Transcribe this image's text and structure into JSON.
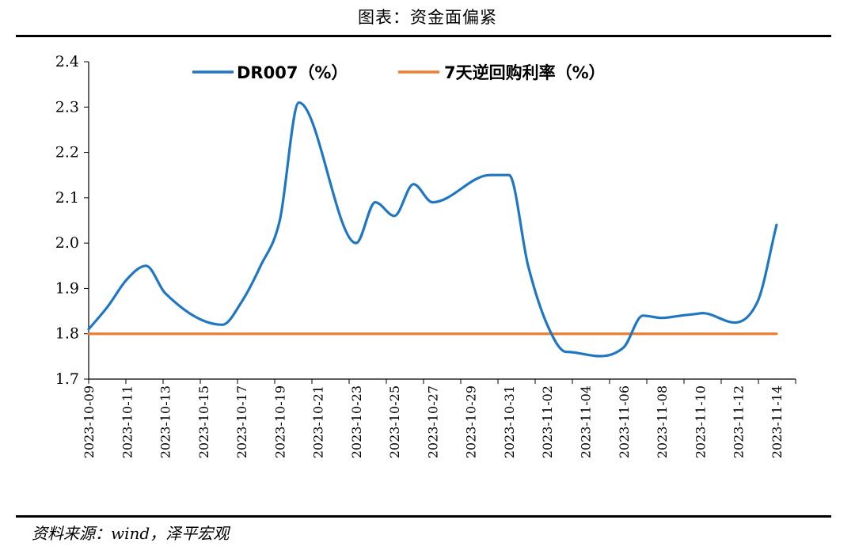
{
  "page": {
    "title": "图表：资金面偏紧",
    "source": "资料来源：wind，泽平宏观"
  },
  "chart_data": {
    "type": "line",
    "title": "",
    "xlabel": "",
    "ylabel": "",
    "ylim": [
      1.7,
      2.4
    ],
    "yticks": [
      "1.7",
      "1.8",
      "1.9",
      "2.0",
      "2.1",
      "2.2",
      "2.3",
      "2.4"
    ],
    "x_tick_labels": [
      "2023-10-09",
      "2023-10-11",
      "2023-10-13",
      "2023-10-15",
      "2023-10-17",
      "2023-10-19",
      "2023-10-21",
      "2023-10-23",
      "2023-10-25",
      "2023-10-27",
      "2023-10-29",
      "2023-10-31",
      "2023-11-02",
      "2023-11-04",
      "2023-11-06",
      "2023-11-08",
      "2023-11-10",
      "2023-11-12",
      "2023-11-14"
    ],
    "x": [
      "2023-10-09",
      "2023-10-10",
      "2023-10-11",
      "2023-10-12",
      "2023-10-13",
      "2023-10-16",
      "2023-10-17",
      "2023-10-18",
      "2023-10-19",
      "2023-10-20",
      "2023-10-23",
      "2023-10-24",
      "2023-10-25",
      "2023-10-26",
      "2023-10-27",
      "2023-10-30",
      "2023-10-31",
      "2023-11-01",
      "2023-11-02",
      "2023-11-03",
      "2023-11-06",
      "2023-11-07",
      "2023-11-08",
      "2023-11-09",
      "2023-11-10",
      "2023-11-13",
      "2023-11-14"
    ],
    "grid": false,
    "legend_position": "top",
    "series": [
      {
        "name": "DR007（%）",
        "color": "#1f77c4",
        "values": [
          1.81,
          1.86,
          1.92,
          1.95,
          1.89,
          1.82,
          1.87,
          1.95,
          2.05,
          2.31,
          2.0,
          2.09,
          2.06,
          2.13,
          2.09,
          2.15,
          2.15,
          1.95,
          1.82,
          1.76,
          1.77,
          1.84,
          1.835,
          1.84,
          1.845,
          1.87,
          2.04
        ]
      },
      {
        "name": "7天逆回购利率（%）",
        "color": "#ed7d31",
        "values": [
          1.8,
          1.8,
          1.8,
          1.8,
          1.8,
          1.8,
          1.8,
          1.8,
          1.8,
          1.8,
          1.8,
          1.8,
          1.8,
          1.8,
          1.8,
          1.8,
          1.8,
          1.8,
          1.8,
          1.8,
          1.8,
          1.8,
          1.8,
          1.8,
          1.8,
          1.8,
          1.8
        ]
      }
    ]
  }
}
